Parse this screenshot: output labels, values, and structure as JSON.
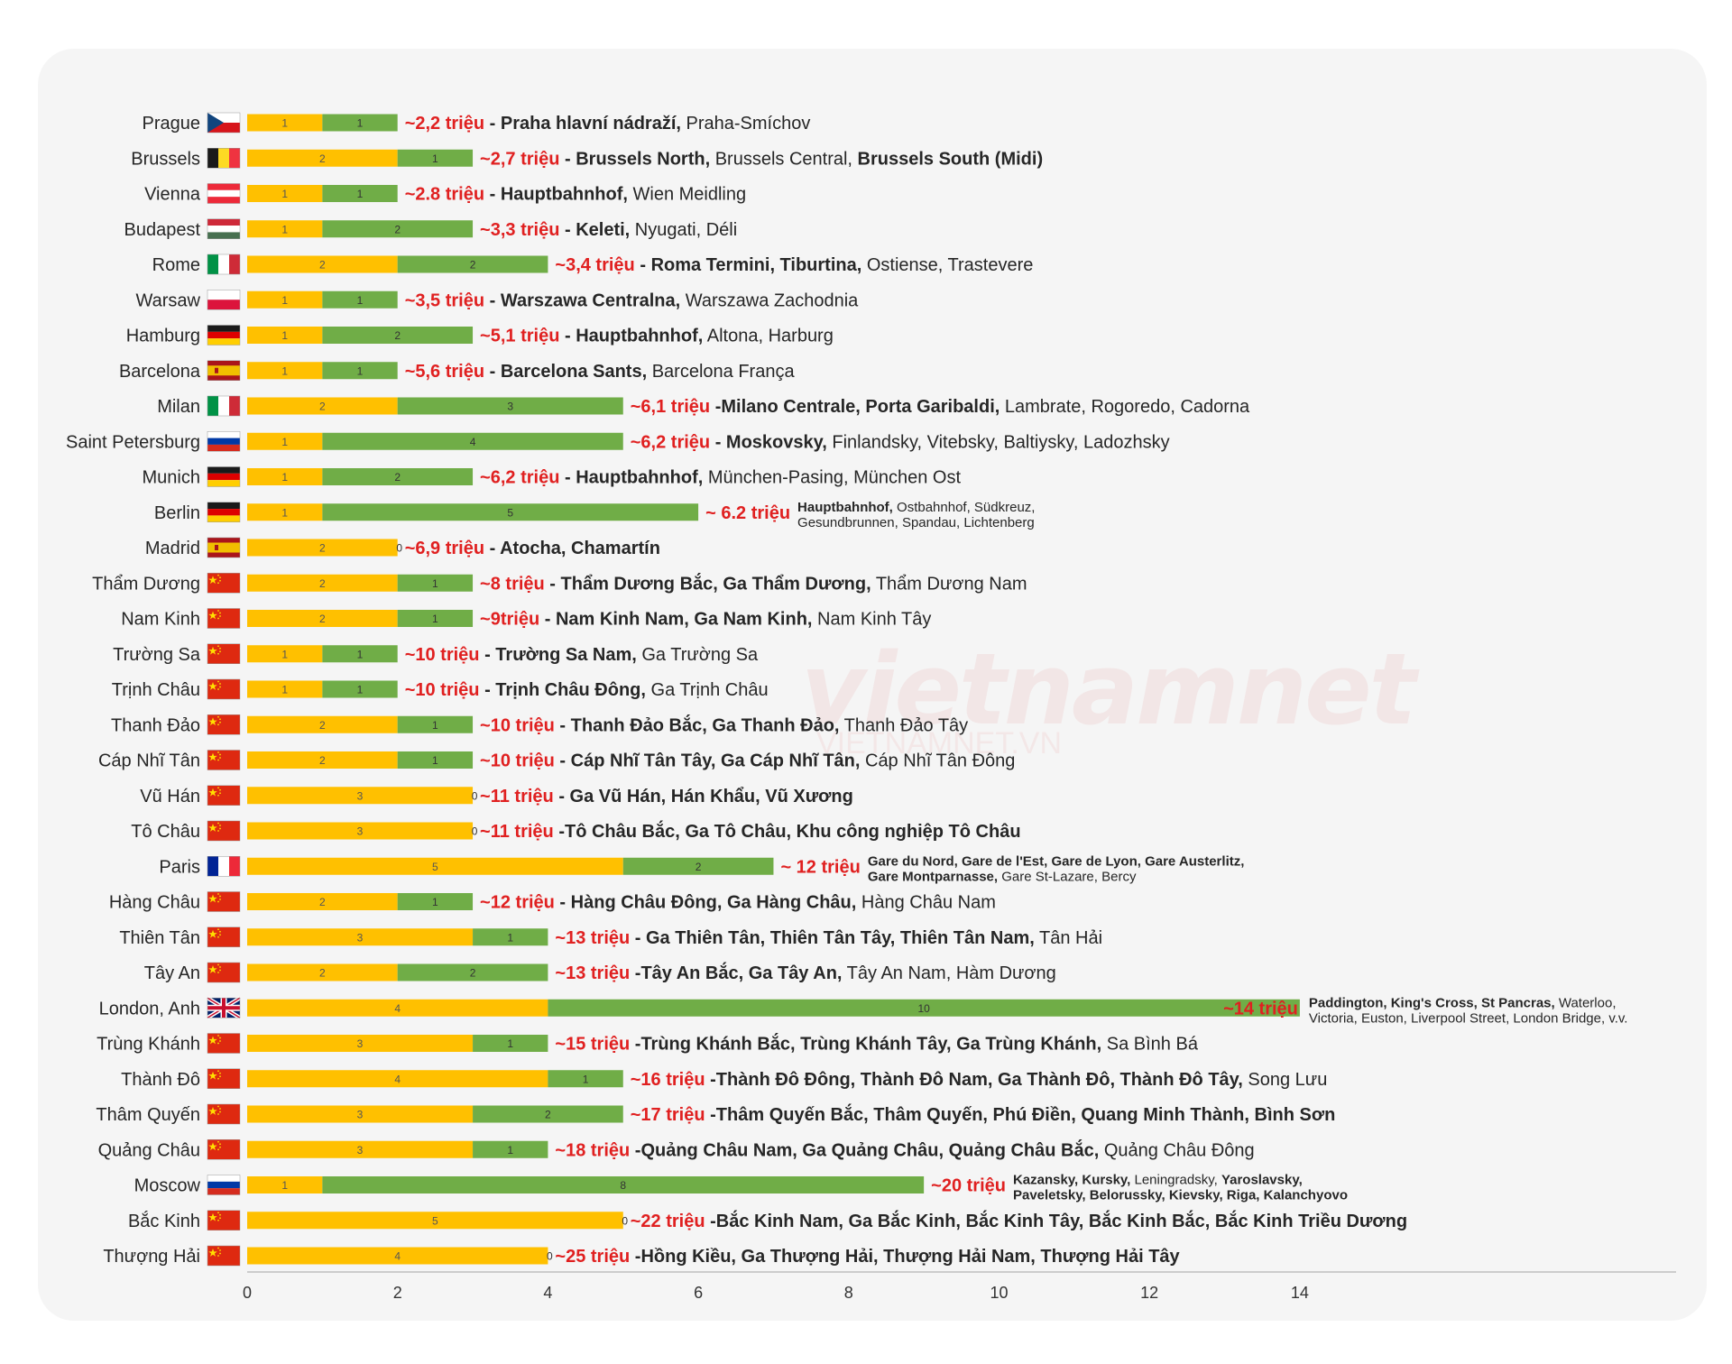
{
  "colors": {
    "yellow": "#FFC000",
    "green": "#70AD47",
    "red_text": "#E02020",
    "dark_text": "#262626",
    "grid": "#d9d9d9"
  },
  "watermark": {
    "text": "vietnamnet",
    "sub": "VIETNAMNET.VN"
  },
  "chart_data": {
    "type": "bar",
    "orientation": "horizontal",
    "stacked": true,
    "xlim": [
      0,
      14
    ],
    "xticks": [
      "0",
      "2",
      "4",
      "6",
      "8",
      "10",
      "12",
      "14"
    ],
    "grid": false,
    "categories": [
      "Prague",
      "Brussels",
      "Vienna",
      "Budapest",
      "Rome",
      "Warsaw",
      "Hamburg",
      "Barcelona",
      "Milan",
      "Saint Petersburg",
      "Munich",
      "Berlin",
      "Madrid",
      "Thẩm Dương",
      "Nam Kinh",
      "Trường Sa",
      "Trịnh Châu",
      "Thanh Đảo",
      "Cáp Nhĩ Tân",
      "Vũ Hán",
      "Tô Châu",
      "Paris",
      "Hàng Châu",
      "Thiên Tân",
      "Tây An",
      "London, Anh",
      "Trùng Khánh",
      "Thành Đô",
      "Thâm Quyến",
      "Quảng Châu",
      "Moscow",
      "Bắc Kinh",
      "Thượng Hải"
    ],
    "flags": [
      "cz",
      "be",
      "at",
      "hu",
      "it",
      "pl",
      "de",
      "es",
      "it",
      "ru",
      "de",
      "de",
      "es",
      "cn",
      "cn",
      "cn",
      "cn",
      "cn",
      "cn",
      "cn",
      "cn",
      "fr",
      "cn",
      "cn",
      "cn",
      "uk",
      "cn",
      "cn",
      "cn",
      "cn",
      "ru",
      "cn",
      "cn"
    ],
    "series": [
      {
        "values": [
          1,
          2,
          1,
          1,
          2,
          1,
          1,
          1,
          2,
          1,
          1,
          1,
          2,
          2,
          2,
          1,
          1,
          2,
          2,
          3,
          3,
          5,
          2,
          3,
          2,
          4,
          3,
          4,
          3,
          3,
          1,
          5,
          4
        ]
      },
      {
        "values": [
          1,
          1,
          1,
          2,
          2,
          1,
          2,
          1,
          3,
          4,
          2,
          5,
          0,
          1,
          1,
          1,
          1,
          1,
          1,
          0,
          0,
          2,
          1,
          1,
          2,
          10,
          1,
          1,
          2,
          1,
          8,
          0,
          0
        ]
      }
    ],
    "annotations": [
      {
        "population": "~2,2 triệu",
        "sep": " - ",
        "bold": "Praha hlavní nádraží,",
        "normal": " Praha-Smíchov"
      },
      {
        "population": "~2,7 triệu",
        "sep": " - ",
        "bold": "Brussels North,",
        "normal": " Brussels Central, ",
        "bold2": "Brussels South (Midi)"
      },
      {
        "population": "~2.8 triệu",
        "sep": " - ",
        "bold": "Hauptbahnhof,",
        "normal": " Wien Meidling"
      },
      {
        "population": "~3,3 triệu",
        "sep": " - ",
        "bold": "Keleti,",
        "normal": " Nyugati, Déli"
      },
      {
        "population": "~3,4 triệu",
        "sep": " - ",
        "bold": "Roma Termini, Tiburtina,",
        "normal": " Ostiense, Trastevere"
      },
      {
        "population": "~3,5 triệu",
        "sep": " - ",
        "bold": "Warszawa Centralna,",
        "normal": " Warszawa Zachodnia"
      },
      {
        "population": "~5,1 triệu",
        "sep": " - ",
        "bold": "Hauptbahnhof,",
        "normal": " Altona, Harburg"
      },
      {
        "population": "~5,6 triệu",
        "sep": " - ",
        "bold": "Barcelona Sants,",
        "normal": " Barcelona França"
      },
      {
        "population": "~6,1 triệu",
        "sep": " -",
        "bold": "Milano Centrale, Porta Garibaldi,",
        "normal": " Lambrate, Rogoredo, Cadorna"
      },
      {
        "population": "~6,2 triệu",
        "sep": " - ",
        "bold": "Moskovsky,",
        "normal": " Finlandsky, Vitebsky, Baltiysky, Ladozhsky"
      },
      {
        "population": "~6,2 triệu",
        "sep": " - ",
        "bold": "Hauptbahnhof,",
        "normal": " München-Pasing, München Ost"
      },
      {
        "population": "~ 6.2 triệu",
        "small": true,
        "line1_bold": "Hauptbahnhof,",
        "line1_normal": " Ostbahnhof, Südkreuz,",
        "line2_bold": "",
        "line2_normal": "Gesundbrunnen, Spandau, Lichtenberg"
      },
      {
        "population": "~6,9 triệu",
        "sep": " - ",
        "bold": "Atocha, Chamartín",
        "normal": ""
      },
      {
        "population": "~8 triệu",
        "sep": " - ",
        "bold": "Thẩm Dương Bắc, Ga Thẩm Dương,",
        "normal": " Thẩm Dương Nam"
      },
      {
        "population": "~9triệu",
        "sep": " - ",
        "bold": "Nam Kinh Nam, Ga Nam Kinh,",
        "normal": " Nam Kinh Tây"
      },
      {
        "population": "~10 triệu",
        "sep": " - ",
        "bold": "Trường Sa Nam,",
        "normal": " Ga Trường Sa"
      },
      {
        "population": "~10 triệu",
        "sep": "  - ",
        "bold": "Trịnh Châu Đông,",
        "normal": " Ga Trịnh Châu"
      },
      {
        "population": "~10 triệu",
        "sep": "  - ",
        "bold": "Thanh Đảo Bắc, Ga Thanh Đảo,",
        "normal": " Thanh Đảo Tây"
      },
      {
        "population": "~10 triệu",
        "sep": " - ",
        "bold": "Cáp Nhĩ Tân Tây, Ga Cáp Nhĩ Tân,",
        "normal": " Cáp Nhĩ Tân Đông"
      },
      {
        "population": "~11 triệu",
        "sep": " - ",
        "bold": "Ga Vũ Hán, Hán Khẩu, Vũ Xương",
        "normal": ""
      },
      {
        "population": "~11 triệu",
        "sep": " -",
        "bold": "Tô Châu Bắc, Ga Tô Châu, Khu công nghiệp Tô Châu",
        "normal": ""
      },
      {
        "population": "~ 12 triệu",
        "small": true,
        "line1_bold": "Gare du Nord, Gare de l'Est, Gare de Lyon, Gare Austerlitz,",
        "line1_normal": "",
        "line2_bold": "Gare Montparnasse,",
        "line2_normal": " Gare St-Lazare, Bercy"
      },
      {
        "population": "~12 triệu",
        "sep": " - ",
        "bold": "Hàng Châu Đông, Ga Hàng Châu,",
        "normal": " Hàng Châu Nam"
      },
      {
        "population": "~13 triệu",
        "sep": " - ",
        "bold": "Ga Thiên Tân, Thiên Tân Tây, Thiên Tân Nam,",
        "normal": " Tân Hải"
      },
      {
        "population": "~13 triệu",
        "sep": " -",
        "bold": "Tây An Bắc, Ga Tây An,",
        "normal": " Tây An Nam, Hàm Dương"
      },
      {
        "population": "~14 triệu",
        "small": true,
        "inside": true,
        "line1_bold": "Paddington, King's Cross, St Pancras,",
        "line1_normal": " Waterloo,",
        "line2_bold": "",
        "line2_normal": "Victoria, Euston, Liverpool Street, London Bridge, v.v."
      },
      {
        "population": "~15 triệu",
        "sep": " -",
        "bold": "Trùng Khánh Bắc, Trùng Khánh Tây, Ga Trùng Khánh,",
        "normal": " Sa Bình Bá"
      },
      {
        "population": "~16 triệu",
        "sep": " -",
        "bold": "Thành Đô Đông, Thành Đô Nam, Ga Thành Đô, Thành Đô Tây,",
        "normal": " Song Lưu"
      },
      {
        "population": "~17 triệu",
        "sep": " -",
        "bold": "Thâm Quyến Bắc, Thâm Quyến, Phú Điền, Quang Minh Thành, Bình Sơn",
        "normal": ""
      },
      {
        "population": "~18 triệu",
        "sep": " -",
        "bold": "Quảng Châu Nam, Ga Quảng Châu, Quảng Châu Bắc,",
        "normal": " Quảng Châu Đông"
      },
      {
        "population": "~20 triệu",
        "small": true,
        "line1_bold": "Kazansky, Kursky,",
        "line1_normal": " Leningradsky, ",
        "line1_bold2": "Yaroslavsky,",
        "line2_bold": "Paveletsky, Belorussky, Kievsky, Riga, Kalanchyovo",
        "line2_normal": ""
      },
      {
        "population": "~22 triệu",
        "sep": " -",
        "bold": "Bắc Kinh Nam, Ga Bắc Kinh, Bắc Kinh Tây, Bắc Kinh Bắc, Bắc Kinh Triều Dương",
        "normal": ""
      },
      {
        "population": "~25 triệu",
        "sep": " -",
        "bold": "Hồng Kiều, Ga Thượng Hải, Thượng Hải Nam, Thượng Hải Tây",
        "normal": ""
      }
    ]
  }
}
